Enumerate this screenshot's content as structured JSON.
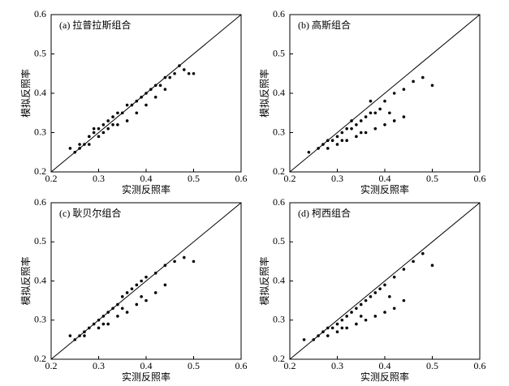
{
  "chart_data": [
    {
      "type": "scatter",
      "title": "(a) 拉普拉斯组合",
      "xlabel": "实测反照率",
      "ylabel": "模拟反照率",
      "color": "#000000",
      "xlim": [
        0.2,
        0.6
      ],
      "ylim": [
        0.2,
        0.6
      ],
      "xticks": [
        0.2,
        0.3,
        0.4,
        0.5,
        0.6
      ],
      "yticks": [
        0.2,
        0.3,
        0.4,
        0.5,
        0.6
      ],
      "x": [
        0.24,
        0.25,
        0.26,
        0.27,
        0.28,
        0.29,
        0.3,
        0.31,
        0.32,
        0.33,
        0.34,
        0.35,
        0.36,
        0.37,
        0.38,
        0.39,
        0.4,
        0.41,
        0.42,
        0.43,
        0.44,
        0.45,
        0.46,
        0.47,
        0.48,
        0.49,
        0.5,
        0.26,
        0.28,
        0.3,
        0.32,
        0.34,
        0.36,
        0.38,
        0.4,
        0.42,
        0.44,
        0.29,
        0.31,
        0.33
      ],
      "values": [
        0.26,
        0.25,
        0.27,
        0.27,
        0.29,
        0.3,
        0.31,
        0.32,
        0.33,
        0.34,
        0.35,
        0.35,
        0.37,
        0.37,
        0.38,
        0.39,
        0.4,
        0.41,
        0.42,
        0.42,
        0.44,
        0.44,
        0.45,
        0.47,
        0.46,
        0.45,
        0.45,
        0.26,
        0.27,
        0.29,
        0.31,
        0.32,
        0.33,
        0.35,
        0.37,
        0.39,
        0.41,
        0.31,
        0.3,
        0.32
      ]
    },
    {
      "type": "scatter",
      "title": "(b) 高斯组合",
      "xlabel": "实测反照率",
      "ylabel": "模拟反照率",
      "color": "#000000",
      "xlim": [
        0.2,
        0.6
      ],
      "ylim": [
        0.2,
        0.6
      ],
      "xticks": [
        0.2,
        0.3,
        0.4,
        0.5,
        0.6
      ],
      "yticks": [
        0.2,
        0.3,
        0.4,
        0.5,
        0.6
      ],
      "x": [
        0.24,
        0.26,
        0.27,
        0.28,
        0.29,
        0.3,
        0.31,
        0.32,
        0.33,
        0.34,
        0.35,
        0.36,
        0.37,
        0.38,
        0.39,
        0.4,
        0.42,
        0.44,
        0.46,
        0.48,
        0.5,
        0.3,
        0.32,
        0.34,
        0.36,
        0.38,
        0.4,
        0.42,
        0.44,
        0.28,
        0.33,
        0.37,
        0.35,
        0.31,
        0.41
      ],
      "values": [
        0.25,
        0.26,
        0.27,
        0.28,
        0.28,
        0.29,
        0.3,
        0.31,
        0.31,
        0.32,
        0.33,
        0.34,
        0.35,
        0.35,
        0.36,
        0.38,
        0.4,
        0.41,
        0.43,
        0.44,
        0.42,
        0.27,
        0.28,
        0.29,
        0.3,
        0.31,
        0.32,
        0.33,
        0.34,
        0.26,
        0.33,
        0.38,
        0.3,
        0.28,
        0.35
      ]
    },
    {
      "type": "scatter",
      "title": "(c) 耿贝尔组合",
      "xlabel": "实测反照率",
      "ylabel": "模拟反照率",
      "color": "#000000",
      "xlim": [
        0.2,
        0.6
      ],
      "ylim": [
        0.2,
        0.6
      ],
      "xticks": [
        0.2,
        0.3,
        0.4,
        0.5,
        0.6
      ],
      "yticks": [
        0.2,
        0.3,
        0.4,
        0.5,
        0.6
      ],
      "x": [
        0.24,
        0.25,
        0.26,
        0.27,
        0.28,
        0.29,
        0.3,
        0.31,
        0.32,
        0.33,
        0.34,
        0.35,
        0.36,
        0.37,
        0.38,
        0.39,
        0.4,
        0.42,
        0.44,
        0.46,
        0.48,
        0.5,
        0.3,
        0.32,
        0.34,
        0.36,
        0.38,
        0.4,
        0.42,
        0.44,
        0.27,
        0.31,
        0.35,
        0.39
      ],
      "values": [
        0.26,
        0.25,
        0.26,
        0.27,
        0.28,
        0.29,
        0.3,
        0.31,
        0.32,
        0.33,
        0.34,
        0.36,
        0.37,
        0.38,
        0.39,
        0.4,
        0.41,
        0.42,
        0.44,
        0.45,
        0.46,
        0.45,
        0.28,
        0.29,
        0.31,
        0.32,
        0.34,
        0.35,
        0.37,
        0.39,
        0.26,
        0.29,
        0.33,
        0.36
      ]
    },
    {
      "type": "scatter",
      "title": "(d) 柯西组合",
      "xlabel": "实测反照率",
      "ylabel": "模拟反照率",
      "color": "#000000",
      "xlim": [
        0.2,
        0.6
      ],
      "ylim": [
        0.2,
        0.6
      ],
      "xticks": [
        0.2,
        0.3,
        0.4,
        0.5,
        0.6
      ],
      "yticks": [
        0.2,
        0.3,
        0.4,
        0.5,
        0.6
      ],
      "x": [
        0.23,
        0.25,
        0.26,
        0.27,
        0.28,
        0.29,
        0.3,
        0.31,
        0.32,
        0.33,
        0.34,
        0.35,
        0.36,
        0.37,
        0.38,
        0.39,
        0.4,
        0.42,
        0.44,
        0.46,
        0.48,
        0.5,
        0.3,
        0.32,
        0.34,
        0.36,
        0.38,
        0.4,
        0.42,
        0.44,
        0.28,
        0.31,
        0.35,
        0.41
      ],
      "values": [
        0.25,
        0.25,
        0.26,
        0.27,
        0.28,
        0.28,
        0.29,
        0.3,
        0.31,
        0.32,
        0.33,
        0.34,
        0.35,
        0.36,
        0.37,
        0.38,
        0.39,
        0.41,
        0.43,
        0.45,
        0.47,
        0.44,
        0.27,
        0.28,
        0.29,
        0.3,
        0.31,
        0.32,
        0.33,
        0.35,
        0.26,
        0.28,
        0.31,
        0.36
      ]
    }
  ]
}
